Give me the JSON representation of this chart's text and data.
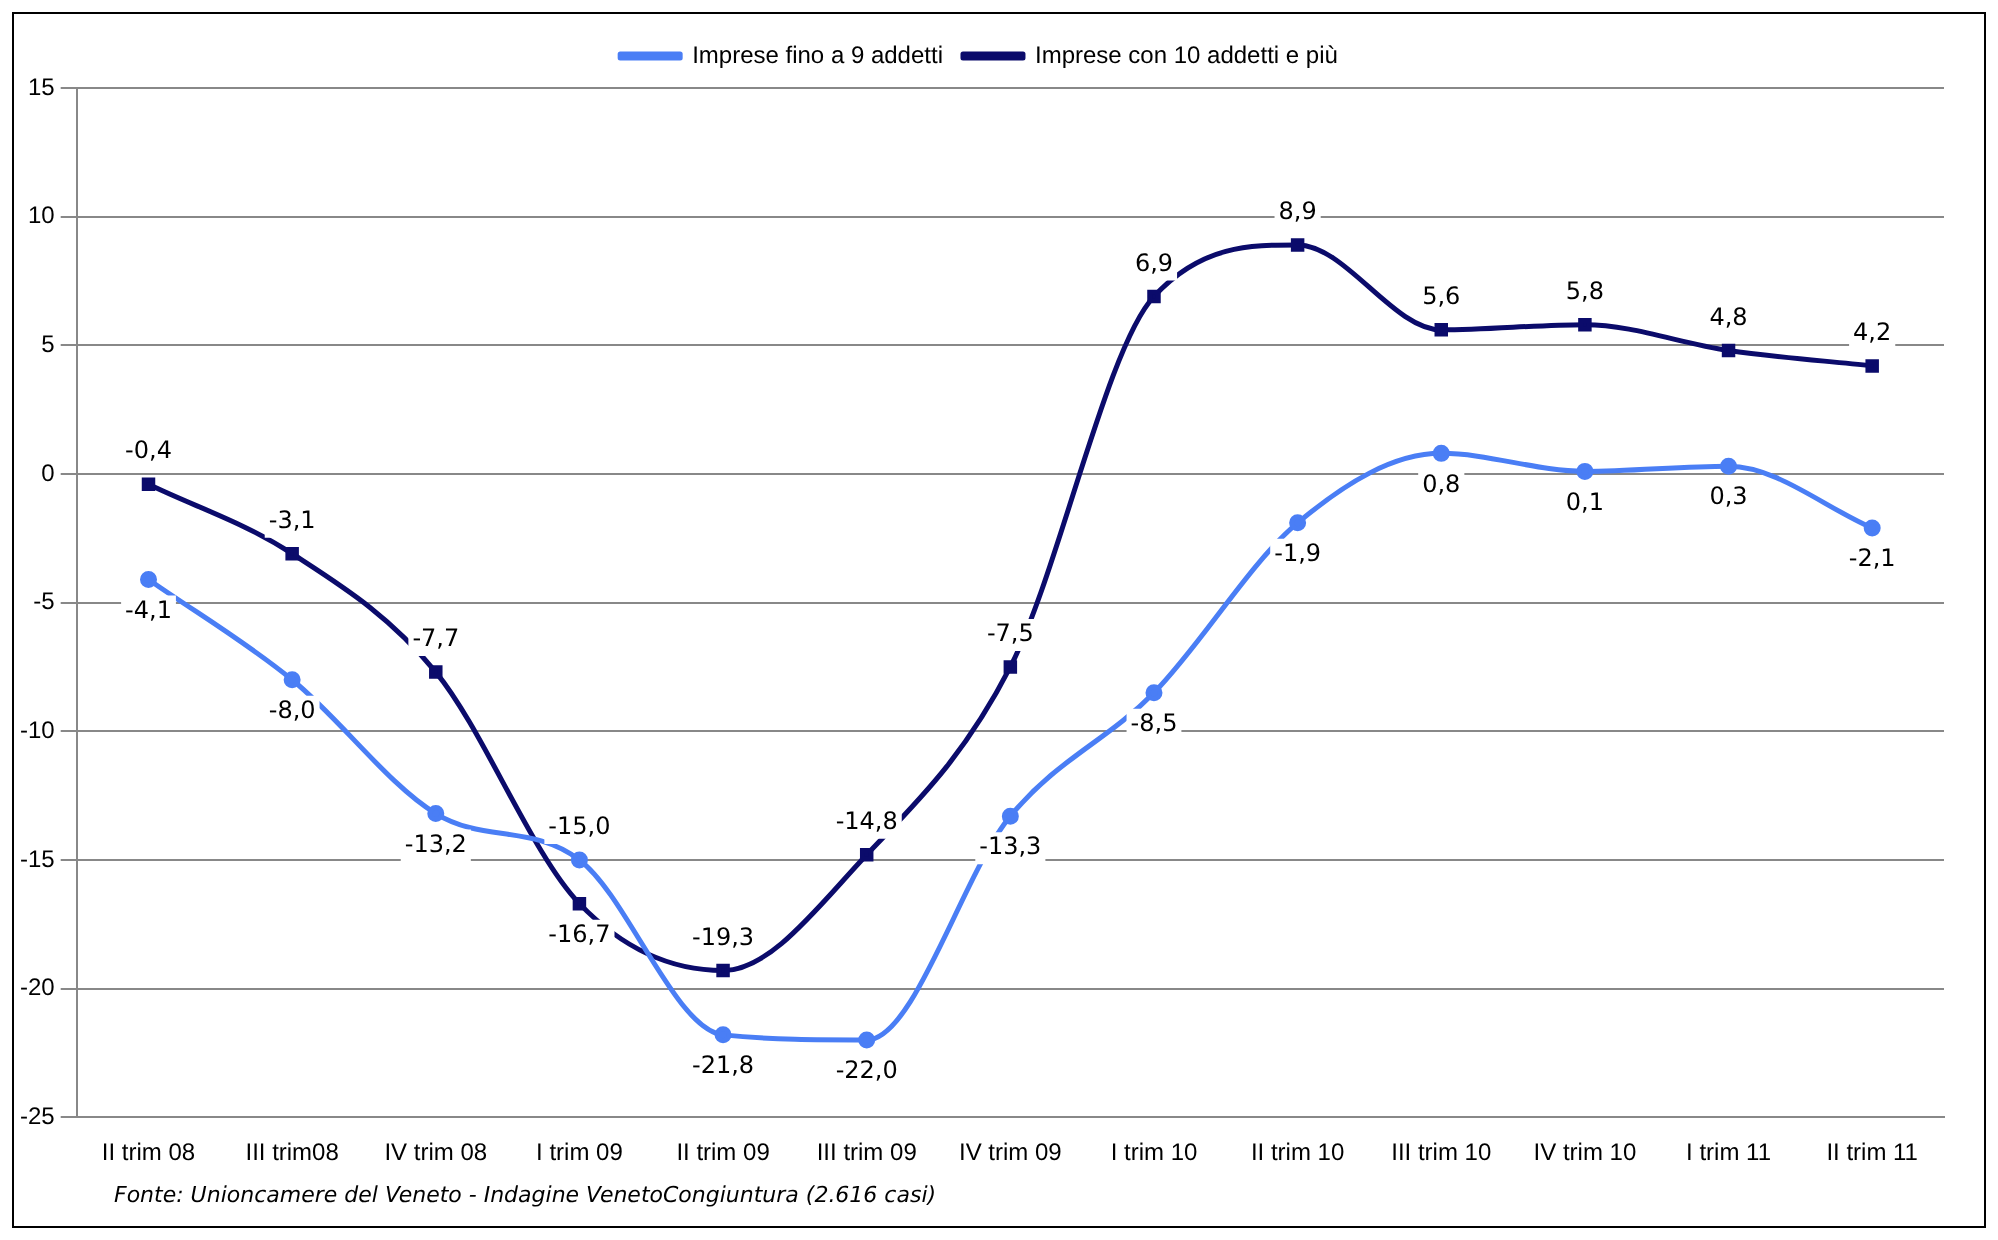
{
  "chart_data": {
    "type": "line",
    "categories": [
      "II trim 08",
      "III trim08",
      "IV trim 08",
      "I trim 09",
      "II trim 09",
      "III trim 09",
      "IV trim 09",
      "I trim 10",
      "II trim 10",
      "III trim 10",
      "IV trim 10",
      "I trim 11",
      "II trim 11"
    ],
    "series": [
      {
        "name": "Imprese fino a 9 addetti",
        "color": "#4a7ef5",
        "marker": "circle",
        "values": [
          -4.1,
          -8.0,
          -13.2,
          -15.0,
          -21.8,
          -22.0,
          -13.3,
          -8.5,
          -1.9,
          0.8,
          0.1,
          0.3,
          -2.1
        ],
        "value_labels": [
          "-4,1",
          "-8,0",
          "-13,2",
          "-15,0",
          "-21,8",
          "-22,0",
          "-13,3",
          "-8,5",
          "-1,9",
          "0,8",
          "0,1",
          "0,3",
          "-2,1"
        ]
      },
      {
        "name": "Imprese con 10 addetti e più",
        "color": "#0b0b6b",
        "marker": "square",
        "values": [
          -0.4,
          -3.1,
          -7.7,
          -16.7,
          -19.3,
          -14.8,
          -7.5,
          6.9,
          8.9,
          5.6,
          5.8,
          4.8,
          4.2
        ],
        "value_labels": [
          "-0,4",
          "-3,1",
          "-7,7",
          "-16,7",
          "-19,3",
          "-14,8",
          "-7,5",
          "6,9",
          "8,9",
          "5,6",
          "5,8",
          "4,8",
          "4,2"
        ]
      }
    ],
    "ylim": [
      -25,
      15
    ],
    "yticks": [
      -25,
      -20,
      -15,
      -10,
      -5,
      0,
      5,
      10,
      15
    ],
    "grid": "y",
    "legend": "top",
    "line_style": "solid",
    "annotations": [
      "Fonte: Unioncamere del Veneto - Indagine VenetoCongiuntura (2.616 casi)"
    ]
  }
}
